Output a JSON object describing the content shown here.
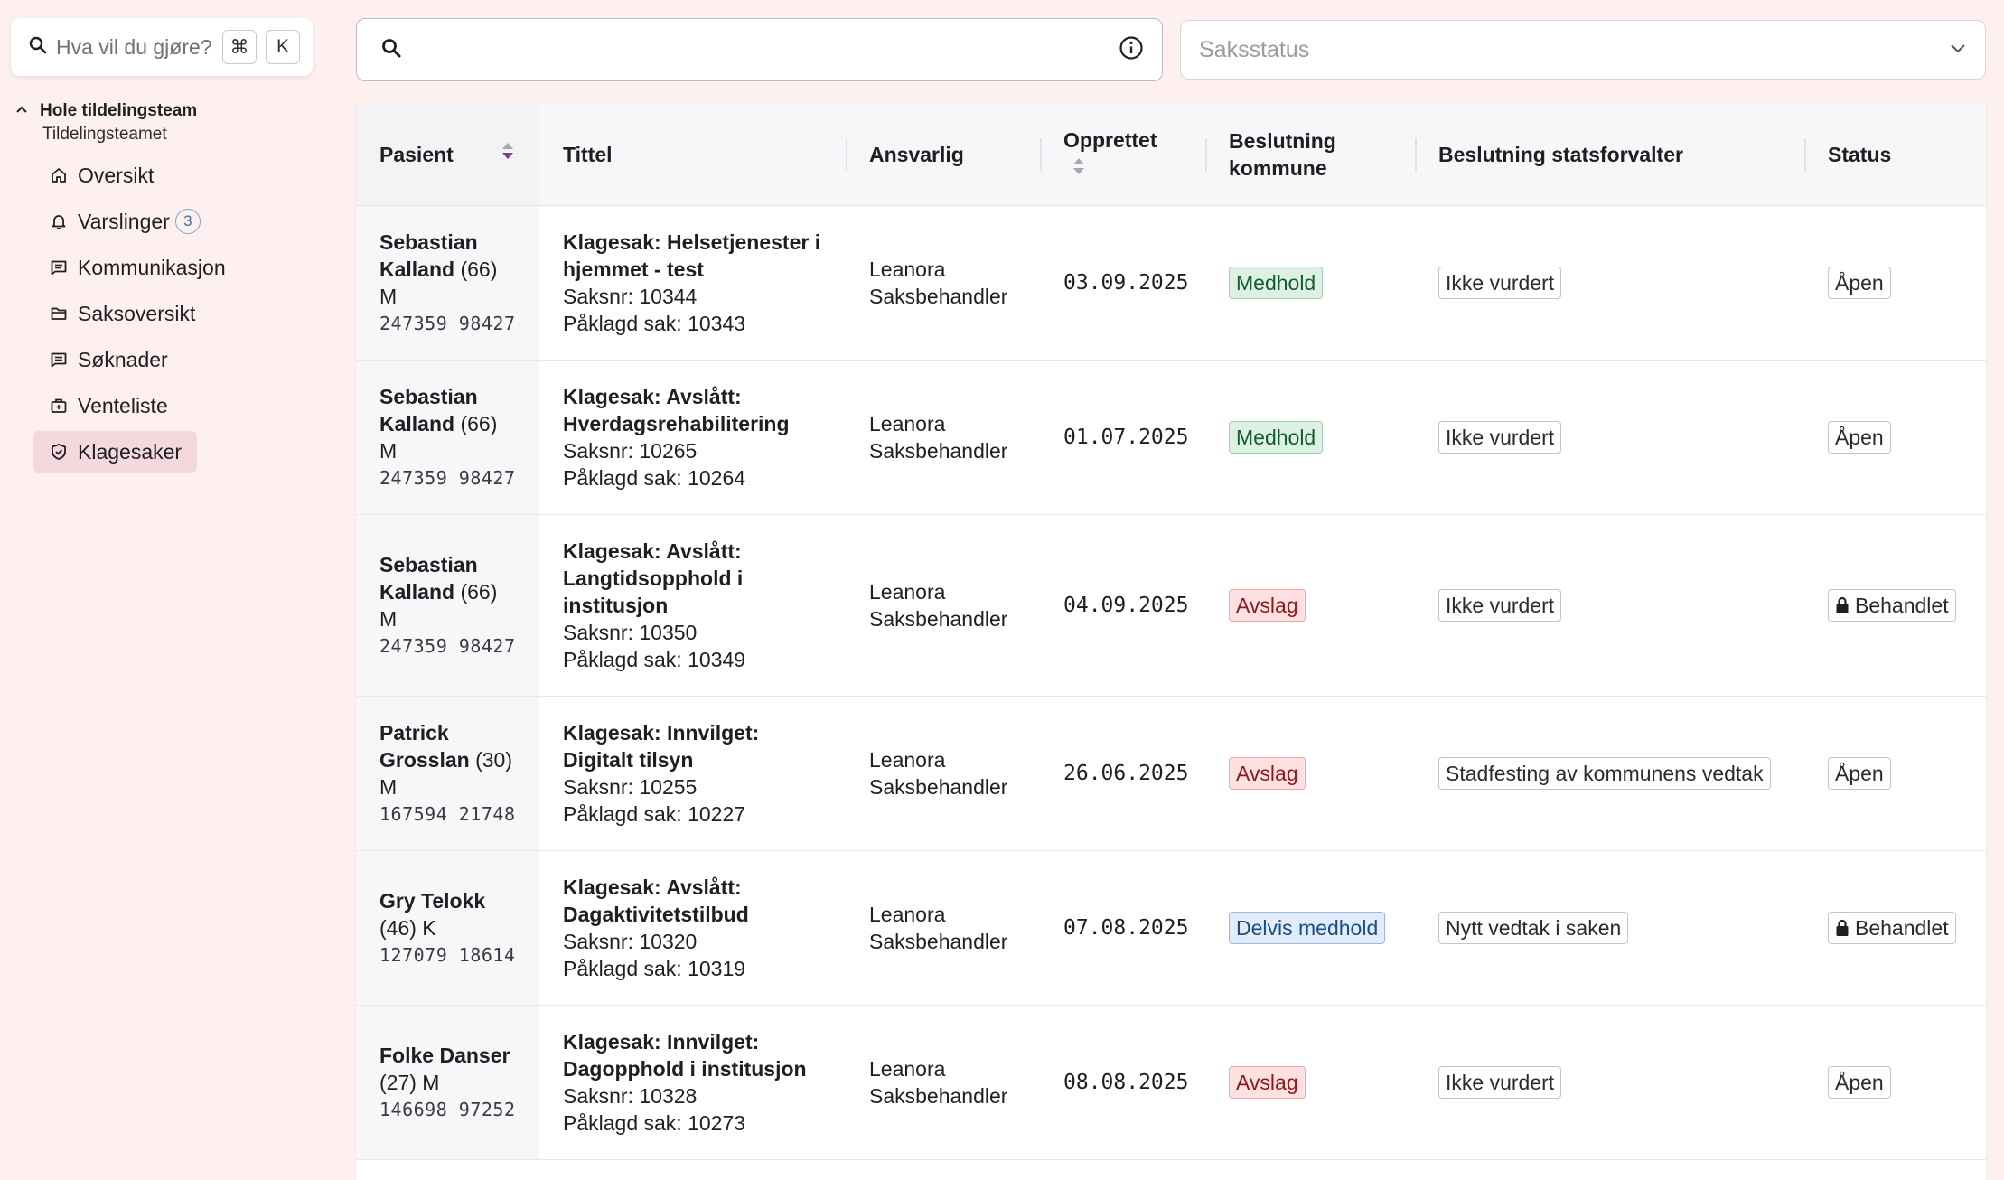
{
  "command_palette": {
    "placeholder": "Hva vil du gjøre?",
    "key1": "⌘",
    "key2": "K"
  },
  "team": {
    "name": "Hole tildelingsteam",
    "subtitle": "Tildelingsteamet"
  },
  "nav": [
    {
      "label": "Oversikt",
      "icon": "home-icon"
    },
    {
      "label": "Varslinger",
      "icon": "bell-icon",
      "badge": "3"
    },
    {
      "label": "Kommunikasjon",
      "icon": "message-icon"
    },
    {
      "label": "Saksoversikt",
      "icon": "folder-icon"
    },
    {
      "label": "Søknader",
      "icon": "document-icon"
    },
    {
      "label": "Venteliste",
      "icon": "waitlist-icon"
    },
    {
      "label": "Klagesaker",
      "icon": "shield-icon",
      "active": true
    }
  ],
  "search": {
    "value": ""
  },
  "status_filter": {
    "placeholder": "Saksstatus"
  },
  "table": {
    "headers": {
      "pasient": "Pasient",
      "tittel": "Tittel",
      "ansvarlig": "Ansvarlig",
      "opprettet": "Opprettet",
      "beslutning_kommune_1": "Beslutning",
      "beslutning_kommune_2": "kommune",
      "beslutning_statsforvalter": "Beslutning statsforvalter",
      "status": "Status"
    },
    "rows": [
      {
        "name_1": "Sebastian",
        "name_2": "Kalland",
        "age": "(66)",
        "gender": "M",
        "pid": "247359 98427",
        "title_1": "Klagesak: Helsetjenester i",
        "title_2": "hjemmet - test",
        "saksnr": "Saksnr: 10344",
        "paklagd": "Påklagd sak: 10343",
        "ansvarlig_1": "Leanora",
        "ansvarlig_2": "Saksbehandler",
        "opprettet": "03.09.2025",
        "kommune": "Medhold",
        "kommune_tone": "green",
        "statsforvalter": "Ikke vurdert",
        "status": "Åpen",
        "locked": false
      },
      {
        "name_1": "Sebastian",
        "name_2": "Kalland",
        "age": "(66)",
        "gender": "M",
        "pid": "247359 98427",
        "title_1": "Klagesak: Avslått:",
        "title_2": "Hverdagsrehabilitering",
        "saksnr": "Saksnr: 10265",
        "paklagd": "Påklagd sak: 10264",
        "ansvarlig_1": "Leanora",
        "ansvarlig_2": "Saksbehandler",
        "opprettet": "01.07.2025",
        "kommune": "Medhold",
        "kommune_tone": "green",
        "statsforvalter": "Ikke vurdert",
        "status": "Åpen",
        "locked": false
      },
      {
        "name_1": "Sebastian",
        "name_2": "Kalland",
        "age": "(66)",
        "gender": "M",
        "pid": "247359 98427",
        "title_1": "Klagesak: Avslått:",
        "title_2": "Langtidsopphold i",
        "title_3": "institusjon",
        "saksnr": "Saksnr: 10350",
        "paklagd": "Påklagd sak: 10349",
        "ansvarlig_1": "Leanora",
        "ansvarlig_2": "Saksbehandler",
        "opprettet": "04.09.2025",
        "kommune": "Avslag",
        "kommune_tone": "red",
        "statsforvalter": "Ikke vurdert",
        "status": "Behandlet",
        "locked": true
      },
      {
        "name_1": "Patrick",
        "name_2": "Grosslan",
        "age": "(30)",
        "gender": "M",
        "pid": "167594 21748",
        "title_1": "Klagesak: Innvilget:",
        "title_2": "Digitalt tilsyn",
        "saksnr": "Saksnr: 10255",
        "paklagd": "Påklagd sak: 10227",
        "ansvarlig_1": "Leanora",
        "ansvarlig_2": "Saksbehandler",
        "opprettet": "26.06.2025",
        "kommune": "Avslag",
        "kommune_tone": "red",
        "statsforvalter": "Stadfesting av kommunens vedtak",
        "status": "Åpen",
        "locked": false
      },
      {
        "name_1": "Gry Telokk",
        "name_2": "",
        "age": "(46)",
        "gender": "K",
        "pid": "127079 18614",
        "title_1": "Klagesak: Avslått:",
        "title_2": "Dagaktivitetstilbud",
        "saksnr": "Saksnr: 10320",
        "paklagd": "Påklagd sak: 10319",
        "ansvarlig_1": "Leanora",
        "ansvarlig_2": "Saksbehandler",
        "opprettet": "07.08.2025",
        "kommune": "Delvis medhold",
        "kommune_tone": "blue",
        "statsforvalter": "Nytt vedtak i saken",
        "status": "Behandlet",
        "locked": true
      },
      {
        "name_1": "Folke Danser",
        "name_2": "",
        "age": "(27)",
        "gender": "M",
        "pid": "146698 97252",
        "title_1": "Klagesak: Innvilget:",
        "title_2": "Dagopphold i institusjon",
        "saksnr": "Saksnr: 10328",
        "paklagd": "Påklagd sak: 10273",
        "ansvarlig_1": "Leanora",
        "ansvarlig_2": "Saksbehandler",
        "opprettet": "08.08.2025",
        "kommune": "Avslag",
        "kommune_tone": "red",
        "statsforvalter": "Ikke vurdert",
        "status": "Åpen",
        "locked": false
      }
    ]
  }
}
